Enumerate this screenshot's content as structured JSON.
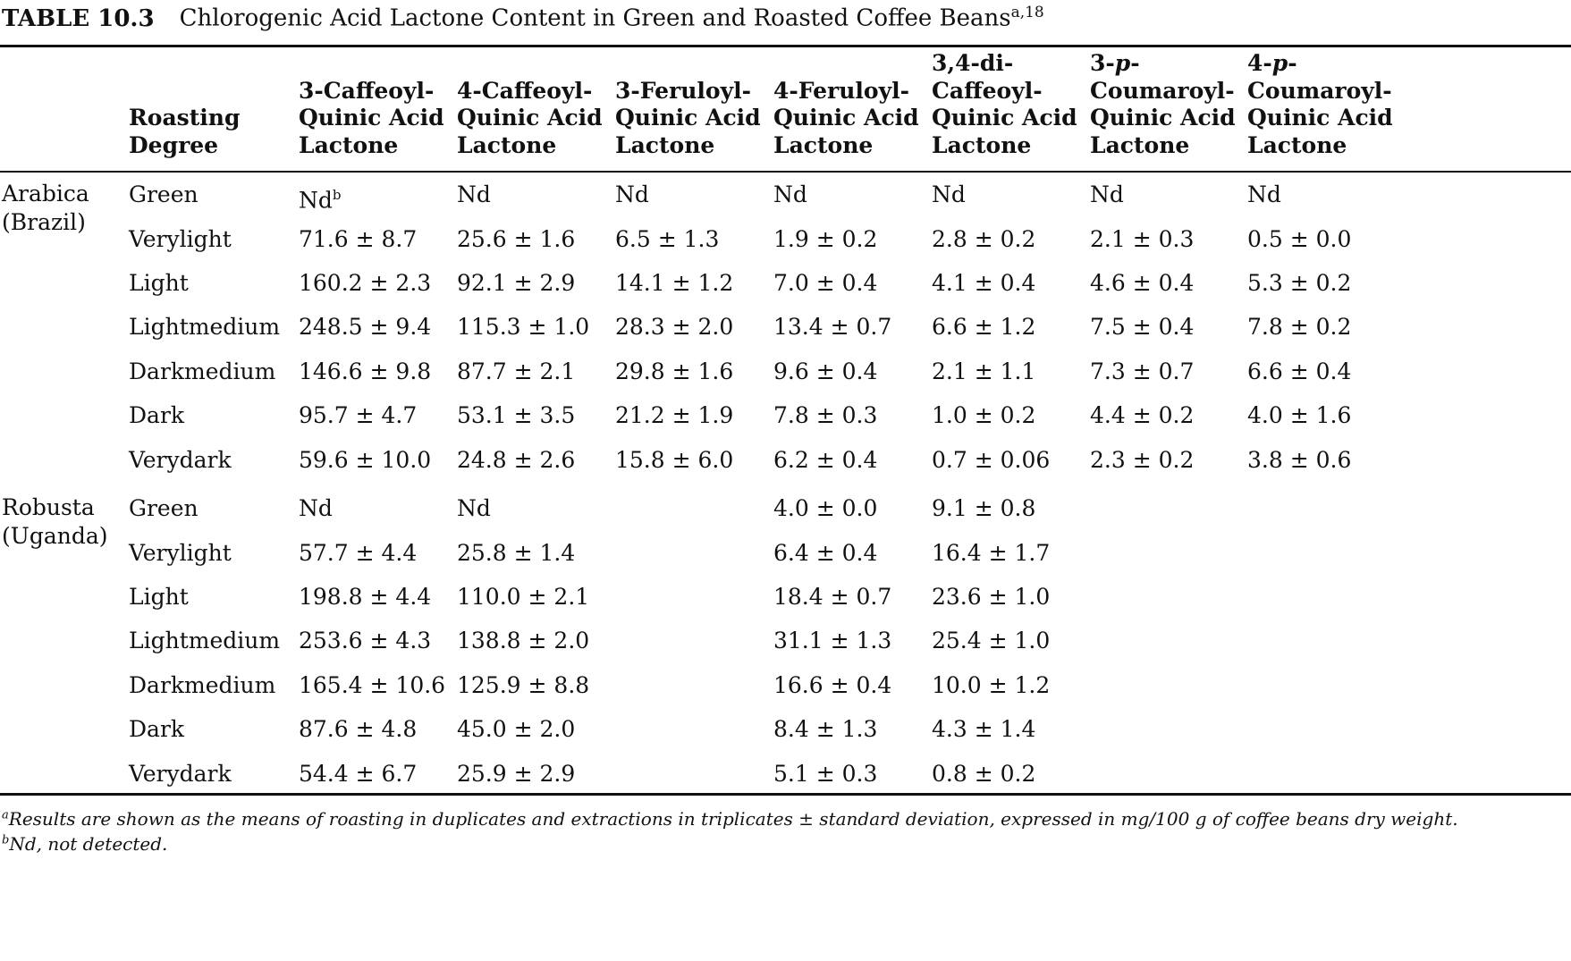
{
  "caption": {
    "number": "TABLE 10.3",
    "title": "Chlorogenic Acid Lactone Content in Green and Roasted Coffee Beans",
    "superscript": "a,18"
  },
  "headers": [
    [
      "Roasting",
      "Degree"
    ],
    [
      "3-Caffeoyl-",
      "Quinic Acid",
      "Lactone"
    ],
    [
      "4-Caffeoyl-",
      "Quinic Acid",
      "Lactone"
    ],
    [
      "3-Feruloyl-",
      "Quinic Acid",
      "Lactone"
    ],
    [
      "4-Feruloyl-",
      "Quinic Acid",
      "Lactone"
    ],
    [
      "3,4-di-",
      "Caffeoyl-",
      "Quinic Acid",
      "Lactone"
    ],
    [
      "3-",
      "p",
      "-",
      "Coumaroyl-",
      "Quinic Acid",
      "Lactone"
    ],
    [
      "4-",
      "p",
      "-",
      "Coumaroyl-",
      "Quinic Acid",
      "Lactone"
    ]
  ],
  "header_p_cols": {
    "col7": {
      "pre": "3-",
      "ital": "p",
      "post": "-",
      "rest": [
        "Coumaroyl-",
        "Quinic Acid",
        "Lactone"
      ]
    },
    "col8": {
      "pre": "4-",
      "ital": "p",
      "post": "-",
      "rest": [
        "Coumaroyl-",
        "Quinic Acid",
        "Lactone"
      ]
    }
  },
  "groups": [
    {
      "name": [
        "Arabica",
        "(Brazil)"
      ],
      "rows": [
        [
          "Green",
          "Nd",
          "Nd",
          "Nd",
          "Nd",
          "Nd",
          "Nd",
          "Nd"
        ],
        [
          "Verylight",
          "71.6 ± 8.7",
          "25.6 ± 1.6",
          "6.5 ± 1.3",
          "1.9 ± 0.2",
          "2.8 ± 0.2",
          "2.1 ± 0.3",
          "0.5 ± 0.0"
        ],
        [
          "Light",
          "160.2 ± 2.3",
          "92.1 ± 2.9",
          "14.1 ± 1.2",
          "7.0 ± 0.4",
          "4.1 ± 0.4",
          "4.6 ± 0.4",
          "5.3 ± 0.2"
        ],
        [
          "Lightmedium",
          "248.5 ± 9.4",
          "115.3 ± 1.0",
          "28.3 ± 2.0",
          "13.4 ± 0.7",
          "6.6 ± 1.2",
          "7.5 ± 0.4",
          "7.8 ± 0.2"
        ],
        [
          "Darkmedium",
          "146.6 ± 9.8",
          "87.7 ± 2.1",
          "29.8 ± 1.6",
          "9.6 ± 0.4",
          "2.1 ± 1.1",
          "7.3 ± 0.7",
          "6.6 ± 0.4"
        ],
        [
          "Dark",
          "95.7 ± 4.7",
          "53.1 ± 3.5",
          "21.2 ± 1.9",
          "7.8 ± 0.3",
          "1.0 ± 0.2",
          "4.4 ± 0.2",
          "4.0 ± 1.6"
        ],
        [
          "Verydark",
          "59.6 ± 10.0",
          "24.8 ± 2.6",
          "15.8 ± 6.0",
          "6.2 ± 0.4",
          "0.7 ± 0.06",
          "2.3 ± 0.2",
          "3.8 ± 0.6"
        ]
      ]
    },
    {
      "name": [
        "Robusta",
        "(Uganda)"
      ],
      "rows": [
        [
          "Green",
          "Nd",
          "Nd",
          "",
          "4.0 ± 0.0",
          "9.1 ± 0.8",
          "",
          ""
        ],
        [
          "Verylight",
          "57.7 ± 4.4",
          "25.8 ± 1.4",
          "",
          "6.4 ± 0.4",
          "16.4 ± 1.7",
          "",
          ""
        ],
        [
          "Light",
          "198.8 ± 4.4",
          "110.0 ± 2.1",
          "",
          "18.4 ± 0.7",
          "23.6 ± 1.0",
          "",
          ""
        ],
        [
          "Lightmedium",
          "253.6 ± 4.3",
          "138.8 ± 2.0",
          "",
          "31.1 ± 1.3",
          "25.4 ± 1.0",
          "",
          ""
        ],
        [
          "Darkmedium",
          "165.4 ± 10.6",
          "125.9 ± 8.8",
          "",
          "16.6 ± 0.4",
          "10.0 ± 1.2",
          "",
          ""
        ],
        [
          "Dark",
          "87.6 ± 4.8",
          "45.0 ± 2.0",
          "",
          "8.4 ± 1.3",
          "4.3 ± 1.4",
          "",
          ""
        ],
        [
          "Verydark",
          "54.4 ± 6.7",
          "25.9 ± 2.9",
          "",
          "5.1 ± 0.3",
          "0.8 ± 0.2",
          "",
          ""
        ]
      ]
    }
  ],
  "first_nd_sup": "b",
  "footnotes": [
    {
      "mark": "a",
      "text": "Results are shown as the means of roasting in duplicates and extractions in triplicates ± standard deviation, expressed in mg/100 g of coffee beans dry weight."
    },
    {
      "mark": "b",
      "text": "Nd, not detected."
    }
  ]
}
